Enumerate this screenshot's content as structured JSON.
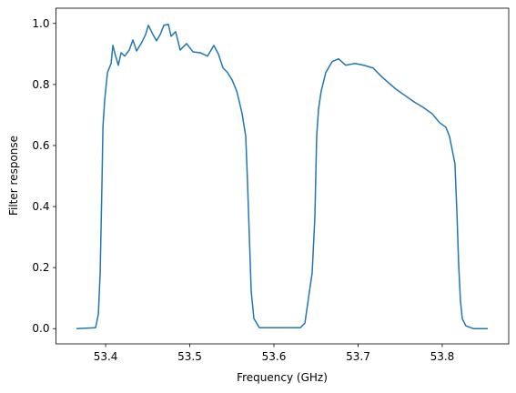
{
  "chart_data": {
    "type": "line",
    "xlabel": "Frequency (GHz)",
    "ylabel": "Filter response",
    "x": [
      53.3654,
      53.3881,
      53.3914,
      53.3935,
      53.3957,
      53.3968,
      53.3989,
      53.4022,
      53.4065,
      53.4086,
      53.4119,
      53.4151,
      53.4184,
      53.4227,
      53.4281,
      53.4324,
      53.4368,
      53.4422,
      53.4476,
      53.4508,
      53.4562,
      53.4605,
      53.4649,
      53.4692,
      53.4746,
      53.4778,
      53.4832,
      53.4886,
      53.4962,
      53.5038,
      53.5124,
      53.5211,
      53.5286,
      53.5341,
      53.5395,
      53.5449,
      53.5503,
      53.5557,
      53.5589,
      53.5622,
      53.5665,
      53.5686,
      53.5708,
      53.573,
      53.5762,
      53.5827,
      53.6314,
      53.6368,
      53.6422,
      53.6454,
      53.6486,
      53.6508,
      53.653,
      53.6562,
      53.6616,
      53.6692,
      53.6768,
      53.6854,
      53.6962,
      53.707,
      53.7178,
      53.7286,
      53.7373,
      53.7449,
      53.7557,
      53.7665,
      53.7773,
      53.7881,
      53.7968,
      53.8043,
      53.8086,
      53.8119,
      53.8151,
      53.8173,
      53.8195,
      53.8216,
      53.8238,
      53.8281,
      53.8368,
      53.8541
    ],
    "series": [
      {
        "color": "#1f77b4",
        "values": [
          0,
          0.003,
          0.048,
          0.182,
          0.481,
          0.66,
          0.749,
          0.839,
          0.869,
          0.928,
          0.893,
          0.863,
          0.904,
          0.893,
          0.913,
          0.946,
          0.91,
          0.934,
          0.964,
          0.994,
          0.964,
          0.943,
          0.964,
          0.994,
          0.997,
          0.958,
          0.973,
          0.913,
          0.934,
          0.907,
          0.904,
          0.893,
          0.928,
          0.899,
          0.854,
          0.839,
          0.815,
          0.779,
          0.743,
          0.704,
          0.63,
          0.481,
          0.301,
          0.122,
          0.033,
          0.003,
          0.003,
          0.018,
          0.122,
          0.182,
          0.361,
          0.63,
          0.719,
          0.779,
          0.839,
          0.875,
          0.884,
          0.863,
          0.869,
          0.863,
          0.854,
          0.824,
          0.803,
          0.785,
          0.764,
          0.743,
          0.725,
          0.704,
          0.675,
          0.66,
          0.63,
          0.585,
          0.54,
          0.391,
          0.212,
          0.093,
          0.033,
          0.009,
          0,
          0
        ]
      }
    ],
    "xlim": [
      53.341,
      53.879
    ],
    "xticks": [
      53.4,
      53.5,
      53.6,
      53.7,
      53.8
    ],
    "ylim": [
      -0.05,
      1.05
    ],
    "yticks": [
      {
        "value": 0,
        "label": "0.0"
      },
      {
        "value": 0.2,
        "label": "0.2"
      },
      {
        "value": 0.4,
        "label": "0.4"
      },
      {
        "value": 0.6,
        "label": "0.6"
      },
      {
        "value": 0.8,
        "label": "0.8"
      },
      {
        "value": 1,
        "label": "1.0"
      }
    ],
    "grid": false
  }
}
